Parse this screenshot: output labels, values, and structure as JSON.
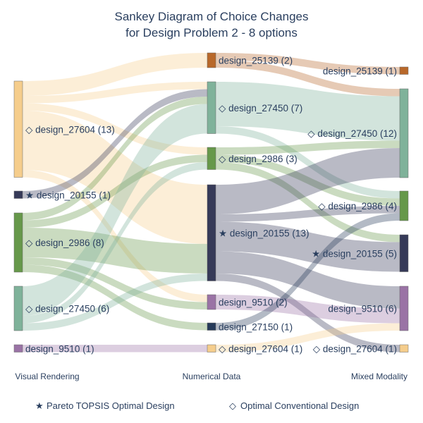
{
  "title_line1": "Sankey Diagram of Choice Changes",
  "title_line2": "for Design Problem 2 - 8 options",
  "columns": [
    "Visual Rendering",
    "Numerical Data",
    "Mixed Modality"
  ],
  "legend": {
    "pareto_label": "Pareto TOPSIS Optimal Design",
    "conventional_label": "Optimal Conventional Design",
    "pareto_symbol": "★",
    "conventional_symbol": "◇"
  },
  "colors": {
    "design_27604": "#f5cd8c",
    "design_20155": "#363a58",
    "design_2986": "#66984a",
    "design_27450": "#7fb29a",
    "design_9510": "#9a73a5",
    "design_25139": "#b8682a",
    "design_27150": "#263a59"
  },
  "chart_data": {
    "type": "sankey",
    "title": "Sankey Diagram of Choice Changes for Design Problem 2 - 8 options",
    "nodes": [
      {
        "id": "v27604",
        "column": 0,
        "design": "design_27604",
        "count": 13,
        "marker": "conventional",
        "label": "◇ design_27604 (13)"
      },
      {
        "id": "v20155",
        "column": 0,
        "design": "design_20155",
        "count": 1,
        "marker": "pareto",
        "label": "★ design_20155 (1)"
      },
      {
        "id": "v2986",
        "column": 0,
        "design": "design_2986",
        "count": 8,
        "marker": "conventional",
        "label": "◇ design_2986 (8)"
      },
      {
        "id": "v27450",
        "column": 0,
        "design": "design_27450",
        "count": 6,
        "marker": "conventional",
        "label": "◇ design_27450 (6)"
      },
      {
        "id": "v9510",
        "column": 0,
        "design": "design_9510",
        "count": 1,
        "marker": "none",
        "label": "design_9510 (1)"
      },
      {
        "id": "n25139",
        "column": 1,
        "design": "design_25139",
        "count": 2,
        "marker": "none",
        "label": "design_25139 (2)"
      },
      {
        "id": "n27450",
        "column": 1,
        "design": "design_27450",
        "count": 7,
        "marker": "conventional",
        "label": "◇ design_27450 (7)"
      },
      {
        "id": "n2986",
        "column": 1,
        "design": "design_2986",
        "count": 3,
        "marker": "conventional",
        "label": "◇ design_2986 (3)"
      },
      {
        "id": "n20155",
        "column": 1,
        "design": "design_20155",
        "count": 13,
        "marker": "pareto",
        "label": "★ design_20155 (13)"
      },
      {
        "id": "n9510",
        "column": 1,
        "design": "design_9510",
        "count": 2,
        "marker": "none",
        "label": "design_9510 (2)"
      },
      {
        "id": "n27150",
        "column": 1,
        "design": "design_27150",
        "count": 1,
        "marker": "none",
        "label": "design_27150 (1)"
      },
      {
        "id": "n27604",
        "column": 1,
        "design": "design_27604",
        "count": 1,
        "marker": "conventional",
        "label": "◇ design_27604 (1)"
      },
      {
        "id": "m25139",
        "column": 2,
        "design": "design_25139",
        "count": 1,
        "marker": "none",
        "label": "design_25139 (1)"
      },
      {
        "id": "m27450",
        "column": 2,
        "design": "design_27450",
        "count": 12,
        "marker": "conventional",
        "label": "◇ design_27450 (12)"
      },
      {
        "id": "m2986",
        "column": 2,
        "design": "design_2986",
        "count": 4,
        "marker": "conventional",
        "label": "◇ design_2986 (4)"
      },
      {
        "id": "m20155",
        "column": 2,
        "design": "design_20155",
        "count": 5,
        "marker": "pareto",
        "label": "★ design_20155 (5)"
      },
      {
        "id": "m9510",
        "column": 2,
        "design": "design_9510",
        "count": 6,
        "marker": "none",
        "label": "design_9510 (6)"
      },
      {
        "id": "m27604",
        "column": 2,
        "design": "design_27604",
        "count": 1,
        "marker": "conventional",
        "label": "◇ design_27604 (1)"
      }
    ],
    "links": [
      {
        "source": "v27604",
        "target": "n25139",
        "value": 2
      },
      {
        "source": "v27604",
        "target": "n27450",
        "value": 1
      },
      {
        "source": "v27604",
        "target": "n2986",
        "value": 1
      },
      {
        "source": "v27604",
        "target": "n20155",
        "value": 8
      },
      {
        "source": "v27604",
        "target": "n9510",
        "value": 1
      },
      {
        "source": "v20155",
        "target": "n27450",
        "value": 1
      },
      {
        "source": "v2986",
        "target": "n27450",
        "value": 1
      },
      {
        "source": "v2986",
        "target": "n2986",
        "value": 1
      },
      {
        "source": "v2986",
        "target": "n20155",
        "value": 4
      },
      {
        "source": "v2986",
        "target": "n9510",
        "value": 1
      },
      {
        "source": "v2986",
        "target": "n27150",
        "value": 1
      },
      {
        "source": "v27450",
        "target": "n27450",
        "value": 4
      },
      {
        "source": "v27450",
        "target": "n2986",
        "value": 1
      },
      {
        "source": "v27450",
        "target": "n20155",
        "value": 1
      },
      {
        "source": "v9510",
        "target": "n27604",
        "value": 1
      },
      {
        "source": "n25139",
        "target": "m25139",
        "value": 1
      },
      {
        "source": "n25139",
        "target": "m27450",
        "value": 1
      },
      {
        "source": "n27450",
        "target": "m27450",
        "value": 6
      },
      {
        "source": "n27450",
        "target": "m2986",
        "value": 1
      },
      {
        "source": "n2986",
        "target": "m27450",
        "value": 1
      },
      {
        "source": "n2986",
        "target": "m2986",
        "value": 1
      },
      {
        "source": "n2986",
        "target": "m20155",
        "value": 1
      },
      {
        "source": "n20155",
        "target": "m27450",
        "value": 4
      },
      {
        "source": "n20155",
        "target": "m2986",
        "value": 1
      },
      {
        "source": "n20155",
        "target": "m20155",
        "value": 4
      },
      {
        "source": "n20155",
        "target": "m9510",
        "value": 3
      },
      {
        "source": "n20155",
        "target": "m27604",
        "value": 1
      },
      {
        "source": "n9510",
        "target": "m9510",
        "value": 2
      },
      {
        "source": "n27150",
        "target": "m2986",
        "value": 1
      },
      {
        "source": "n27604",
        "target": "m9510",
        "value": 1
      }
    ]
  }
}
